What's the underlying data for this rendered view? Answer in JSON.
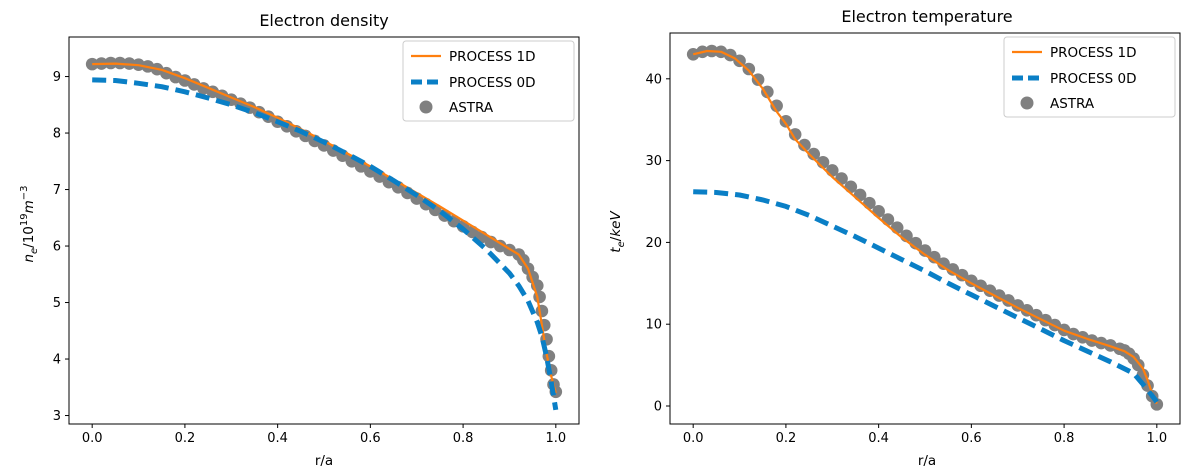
{
  "colors": {
    "process_1d": "#ff7f0e",
    "process_0d": "#0a7fc6",
    "astra": "#808080"
  },
  "chart_data": [
    {
      "type": "line",
      "title": "Electron density",
      "xlabel": "r/a",
      "ylabel": "n_e/10^19 m^-3",
      "xlim": [
        -0.05,
        1.05
      ],
      "ylim": [
        2.85,
        9.7
      ],
      "xticks": [
        "0.0",
        "0.2",
        "0.4",
        "0.6",
        "0.8",
        "1.0"
      ],
      "yticks": [
        "3",
        "4",
        "5",
        "6",
        "7",
        "8",
        "9"
      ],
      "legend_position": "top-right",
      "legend": [
        "PROCESS 1D",
        "PROCESS 0D",
        "ASTRA"
      ],
      "series": [
        {
          "name": "PROCESS 1D",
          "style": "solid",
          "color": "#ff7f0e",
          "x": [
            0.0,
            0.05,
            0.1,
            0.15,
            0.2,
            0.25,
            0.3,
            0.35,
            0.4,
            0.45,
            0.5,
            0.55,
            0.6,
            0.65,
            0.7,
            0.75,
            0.8,
            0.85,
            0.9,
            0.92,
            0.94,
            0.96,
            0.97,
            0.98,
            0.99,
            1.0
          ],
          "y": [
            9.22,
            9.23,
            9.2,
            9.12,
            8.97,
            8.8,
            8.63,
            8.46,
            8.27,
            8.07,
            7.86,
            7.64,
            7.41,
            7.18,
            6.94,
            6.7,
            6.45,
            6.2,
            5.95,
            5.85,
            5.6,
            5.1,
            4.6,
            4.1,
            3.7,
            3.4
          ]
        },
        {
          "name": "PROCESS 0D",
          "style": "dashed",
          "color": "#0a7fc6",
          "x": [
            0.0,
            0.05,
            0.1,
            0.15,
            0.2,
            0.25,
            0.3,
            0.35,
            0.4,
            0.45,
            0.5,
            0.55,
            0.6,
            0.65,
            0.7,
            0.75,
            0.8,
            0.85,
            0.9,
            0.92,
            0.94,
            0.96,
            0.97,
            0.98,
            0.99,
            1.0
          ],
          "y": [
            8.94,
            8.93,
            8.88,
            8.82,
            8.73,
            8.62,
            8.5,
            8.36,
            8.2,
            8.03,
            7.84,
            7.63,
            7.41,
            7.16,
            6.9,
            6.62,
            6.3,
            5.94,
            5.52,
            5.3,
            5.03,
            4.65,
            4.4,
            4.05,
            3.6,
            3.1
          ]
        },
        {
          "name": "ASTRA",
          "style": "markers",
          "color": "#808080",
          "x": [
            0.0,
            0.02,
            0.04,
            0.06,
            0.08,
            0.1,
            0.12,
            0.14,
            0.16,
            0.18,
            0.2,
            0.22,
            0.24,
            0.26,
            0.28,
            0.3,
            0.32,
            0.34,
            0.36,
            0.38,
            0.4,
            0.42,
            0.44,
            0.46,
            0.48,
            0.5,
            0.52,
            0.54,
            0.56,
            0.58,
            0.6,
            0.62,
            0.64,
            0.66,
            0.68,
            0.7,
            0.72,
            0.74,
            0.76,
            0.78,
            0.8,
            0.82,
            0.84,
            0.86,
            0.88,
            0.9,
            0.92,
            0.93,
            0.94,
            0.95,
            0.96,
            0.965,
            0.97,
            0.975,
            0.98,
            0.985,
            0.99,
            0.995,
            1.0
          ],
          "y": [
            9.22,
            9.23,
            9.24,
            9.24,
            9.23,
            9.21,
            9.18,
            9.13,
            9.06,
            8.99,
            8.93,
            8.86,
            8.79,
            8.73,
            8.66,
            8.59,
            8.52,
            8.45,
            8.37,
            8.29,
            8.2,
            8.12,
            8.03,
            7.95,
            7.86,
            7.78,
            7.69,
            7.6,
            7.5,
            7.41,
            7.32,
            7.23,
            7.13,
            7.04,
            6.94,
            6.84,
            6.74,
            6.64,
            6.54,
            6.44,
            6.35,
            6.25,
            6.16,
            6.07,
            6.0,
            5.93,
            5.85,
            5.75,
            5.6,
            5.45,
            5.3,
            5.1,
            4.85,
            4.6,
            4.35,
            4.05,
            3.8,
            3.55,
            3.42
          ]
        }
      ]
    },
    {
      "type": "line",
      "title": "Electron temperature",
      "xlabel": "r/a",
      "ylabel": "t_e/keV",
      "xlim": [
        -0.05,
        1.05
      ],
      "ylim": [
        -2.2,
        45.6
      ],
      "xticks": [
        "0.0",
        "0.2",
        "0.4",
        "0.6",
        "0.8",
        "1.0"
      ],
      "yticks": [
        "0",
        "10",
        "20",
        "30",
        "40"
      ],
      "legend_position": "top-right",
      "legend": [
        "PROCESS 1D",
        "PROCESS 0D",
        "ASTRA"
      ],
      "series": [
        {
          "name": "PROCESS 1D",
          "style": "solid",
          "color": "#ff7f0e",
          "x": [
            0.0,
            0.03,
            0.06,
            0.09,
            0.12,
            0.15,
            0.18,
            0.2,
            0.22,
            0.25,
            0.3,
            0.35,
            0.4,
            0.45,
            0.5,
            0.55,
            0.6,
            0.65,
            0.7,
            0.75,
            0.8,
            0.85,
            0.9,
            0.93,
            0.95,
            0.97,
            0.98,
            0.99,
            1.0
          ],
          "y": [
            43.0,
            43.4,
            43.3,
            42.5,
            41.0,
            38.8,
            36.0,
            34.5,
            32.6,
            30.8,
            28.0,
            25.5,
            23.0,
            20.6,
            18.5,
            16.6,
            15.0,
            13.5,
            12.0,
            10.6,
            9.2,
            8.2,
            7.3,
            6.7,
            6.0,
            4.6,
            3.2,
            1.5,
            0.3
          ]
        },
        {
          "name": "PROCESS 0D",
          "style": "dashed",
          "color": "#0a7fc6",
          "x": [
            0.0,
            0.05,
            0.1,
            0.15,
            0.2,
            0.25,
            0.3,
            0.35,
            0.4,
            0.45,
            0.5,
            0.55,
            0.6,
            0.65,
            0.7,
            0.75,
            0.8,
            0.85,
            0.9,
            0.95,
            0.98,
            1.0
          ],
          "y": [
            26.2,
            26.1,
            25.8,
            25.2,
            24.4,
            23.3,
            22.0,
            20.7,
            19.3,
            17.9,
            16.5,
            15.0,
            13.6,
            12.2,
            10.8,
            9.4,
            8.0,
            6.7,
            5.4,
            4.0,
            2.0,
            0.5
          ]
        },
        {
          "name": "ASTRA",
          "style": "markers",
          "color": "#808080",
          "x": [
            0.0,
            0.02,
            0.04,
            0.06,
            0.08,
            0.1,
            0.12,
            0.14,
            0.16,
            0.18,
            0.2,
            0.22,
            0.24,
            0.26,
            0.28,
            0.3,
            0.32,
            0.34,
            0.36,
            0.38,
            0.4,
            0.42,
            0.44,
            0.46,
            0.48,
            0.5,
            0.52,
            0.54,
            0.56,
            0.58,
            0.6,
            0.62,
            0.64,
            0.66,
            0.68,
            0.7,
            0.72,
            0.74,
            0.76,
            0.78,
            0.8,
            0.82,
            0.84,
            0.86,
            0.88,
            0.9,
            0.92,
            0.93,
            0.94,
            0.95,
            0.96,
            0.97,
            0.98,
            0.99,
            1.0
          ],
          "y": [
            43.0,
            43.3,
            43.4,
            43.3,
            42.9,
            42.2,
            41.2,
            39.9,
            38.4,
            36.7,
            34.8,
            33.2,
            31.9,
            30.8,
            29.8,
            28.8,
            27.8,
            26.8,
            25.8,
            24.8,
            23.8,
            22.8,
            21.8,
            20.8,
            19.9,
            19.0,
            18.2,
            17.4,
            16.7,
            16.0,
            15.3,
            14.7,
            14.1,
            13.5,
            12.9,
            12.3,
            11.7,
            11.1,
            10.5,
            9.9,
            9.3,
            8.8,
            8.4,
            8.0,
            7.7,
            7.4,
            7.0,
            6.8,
            6.4,
            5.8,
            5.0,
            3.8,
            2.5,
            1.2,
            0.2
          ]
        }
      ]
    }
  ]
}
